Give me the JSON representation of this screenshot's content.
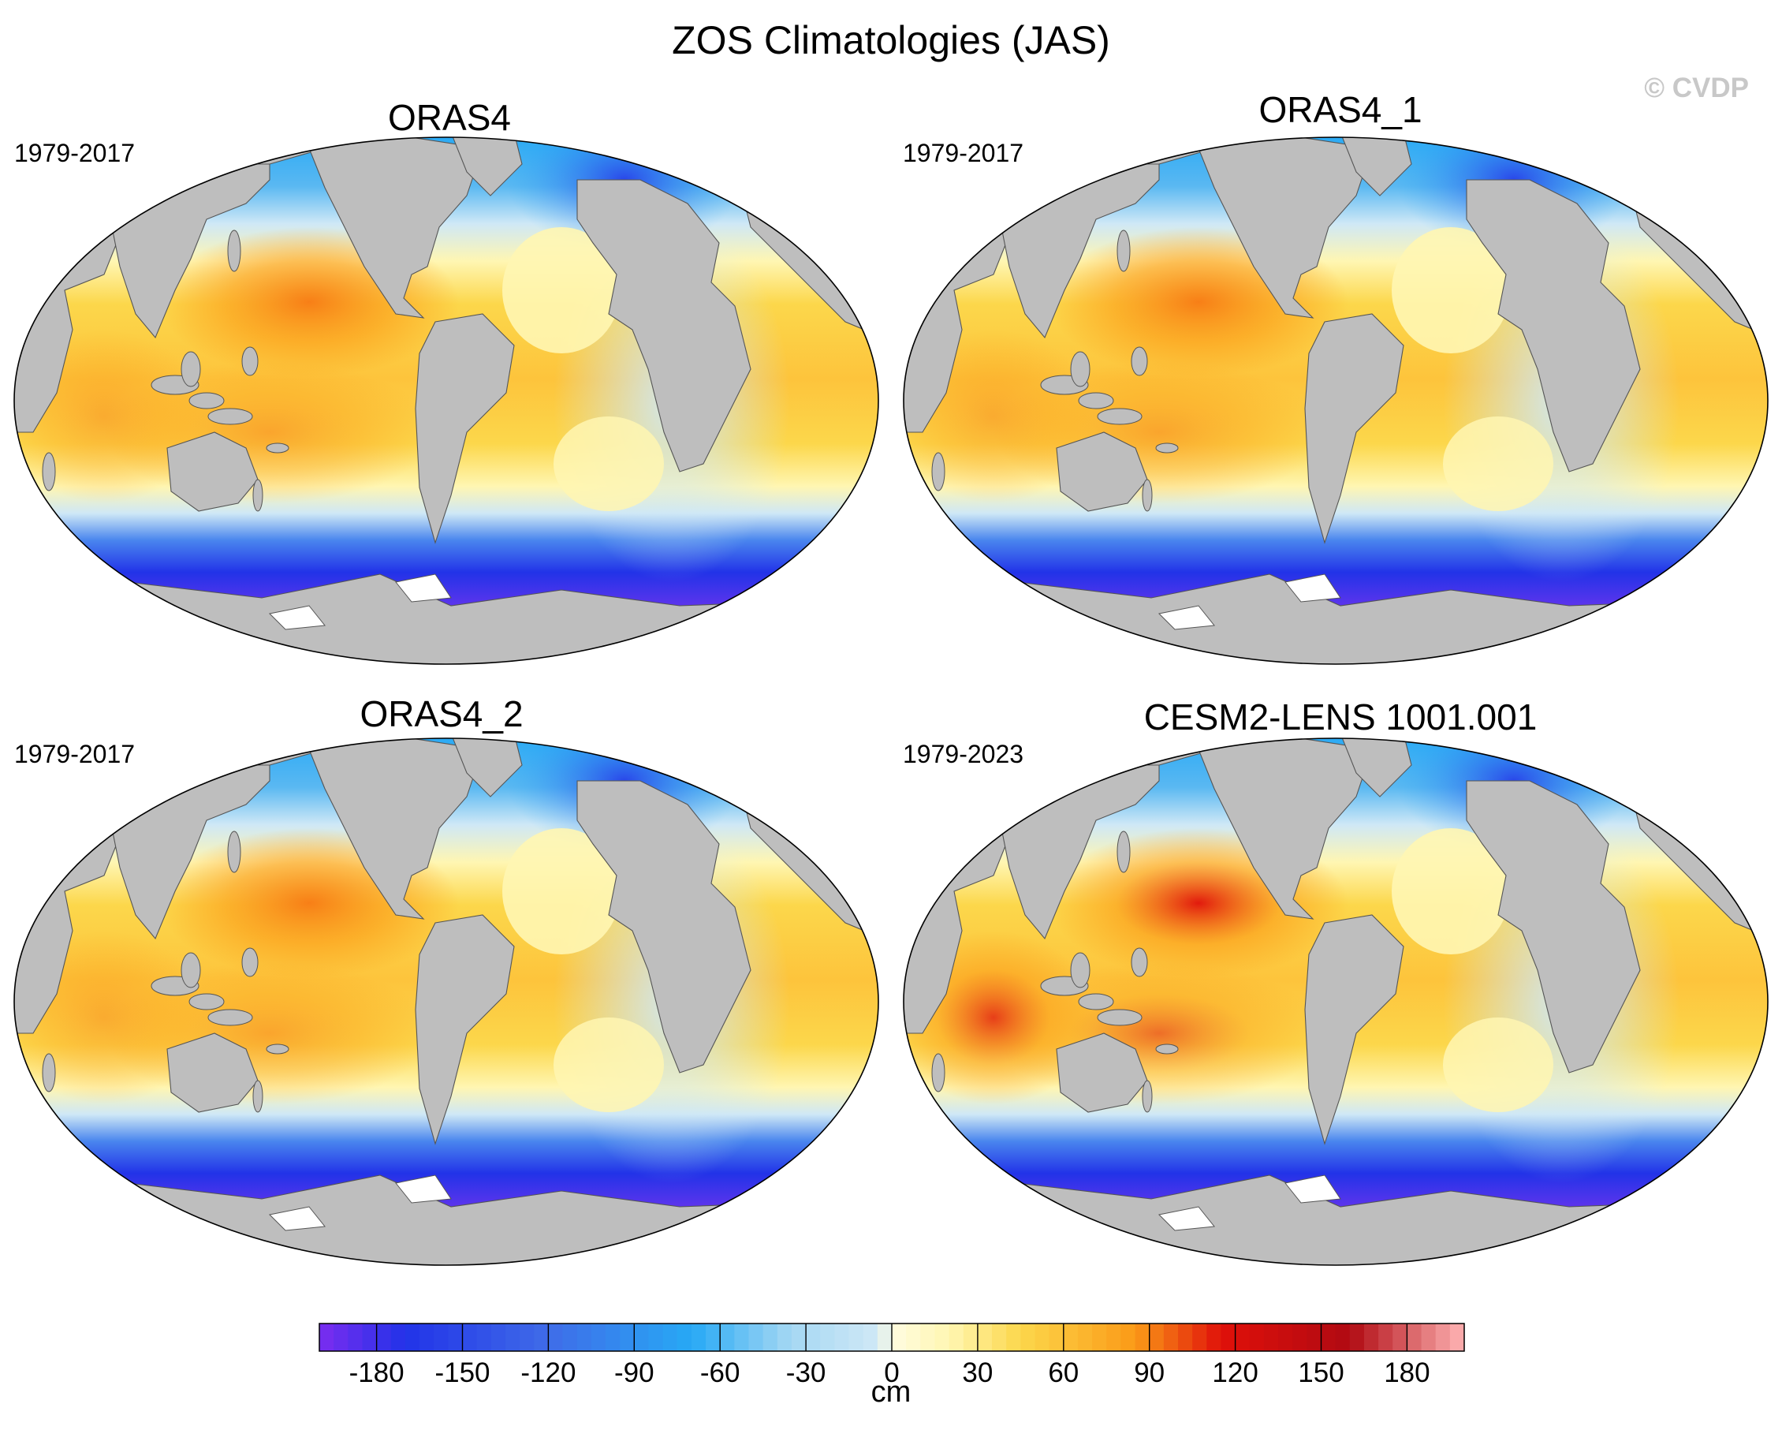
{
  "title": "ZOS Climatologies (JAS)",
  "copyright": "© CVDP",
  "panels": [
    {
      "title": "ORAS4",
      "period": "1979-2017"
    },
    {
      "title": "ORAS4_1",
      "period": "1979-2017"
    },
    {
      "title": "ORAS4_2",
      "period": "1979-2017"
    },
    {
      "title": "CESM2-LENS 1001.001",
      "period": "1979-2023"
    }
  ],
  "colorbar": {
    "units": "cm",
    "ticks": [
      "-180",
      "-150",
      "-120",
      "-90",
      "-60",
      "-30",
      "0",
      "30",
      "60",
      "90",
      "120",
      "150",
      "180"
    ],
    "min": -200,
    "max": 200,
    "step": 5
  },
  "colors": {
    "land": "#bebebe",
    "coast": "#555555",
    "ice": "#ffffff",
    "deep_purple": "#7b2cf0",
    "deep_blue": "#2233e8",
    "sky_blue": "#27a9f5",
    "light_blue": "#cfe8f6",
    "light_yellow": "#fff6b2",
    "yellow": "#fcd74b",
    "orange": "#fb9a17",
    "red": "#e0100a",
    "dark_red": "#b00a12",
    "pink": "#ffb4b4"
  }
}
